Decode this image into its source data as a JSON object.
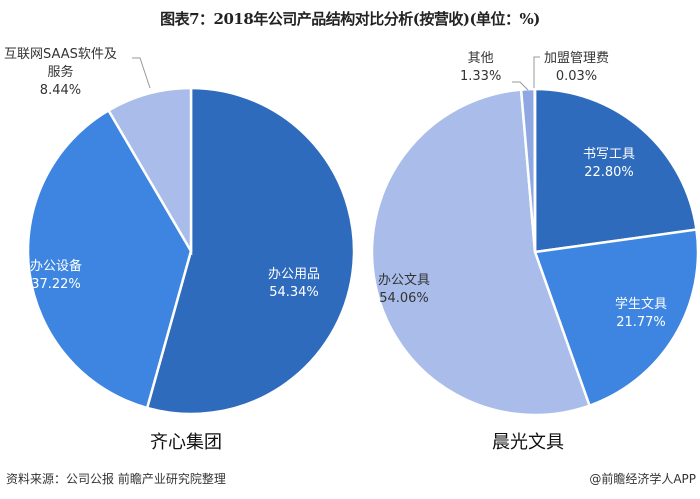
{
  "title": "图表7：2018年公司产品结构对比分析(按营收)(单位：%)",
  "footer": {
    "source": "资料来源：公司公报 前瞻产业研究院整理",
    "brand": "@前瞻经济学人APP"
  },
  "colors": {
    "dark_blue": "#2F6BBC",
    "mid_blue": "#3D85E0",
    "light_blue": "#A9BCEA"
  },
  "chart_data": [
    {
      "type": "pie",
      "title": "齐心集团",
      "slices": [
        {
          "label": "办公用品",
          "value": 54.34,
          "display": "54.34%",
          "color": "#2F6BBC"
        },
        {
          "label": "办公设备",
          "value": 37.22,
          "display": "37.22%",
          "color": "#3D85E0"
        },
        {
          "label": "互联网SAAS软件及服务",
          "value": 8.44,
          "display": "8.44%",
          "color": "#A9BCEA"
        }
      ]
    },
    {
      "type": "pie",
      "title": "晨光文具",
      "slices": [
        {
          "label": "书写工具",
          "value": 22.8,
          "display": "22.80%",
          "color": "#2F6BBC"
        },
        {
          "label": "学生文具",
          "value": 21.77,
          "display": "21.77%",
          "color": "#3D85E0"
        },
        {
          "label": "办公文具",
          "value": 54.06,
          "display": "54.06%",
          "color": "#A9BCEA"
        },
        {
          "label": "其他",
          "value": 1.33,
          "display": "1.33%",
          "color": "#8FA8E4"
        },
        {
          "label": "加盟管理费",
          "value": 0.03,
          "display": "0.03%",
          "color": "#2F6BBC"
        }
      ]
    }
  ],
  "labels": {
    "left": {
      "s0_name": "办公用品",
      "s0_val": "54.34%",
      "s1_name": "办公设备",
      "s1_val": "37.22%",
      "s2_name_line1": "互联网SAAS软件及",
      "s2_name_line2": "服务",
      "s2_val": "8.44%"
    },
    "right": {
      "s0_name": "书写工具",
      "s0_val": "22.80%",
      "s1_name": "学生文具",
      "s1_val": "21.77%",
      "s2_name": "办公文具",
      "s2_val": "54.06%",
      "s3_name": "其他",
      "s3_val": "1.33%",
      "s4_name": "加盟管理费",
      "s4_val": "0.03%"
    }
  }
}
